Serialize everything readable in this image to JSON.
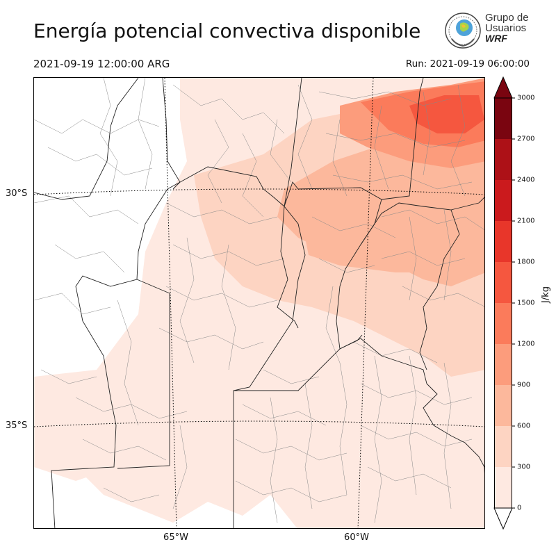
{
  "title": "Energía potencial convectiva disponible",
  "valid_time": "2021-09-19 12:00:00 ARG",
  "run_time": "Run: 2021-09-19 06:00:00",
  "logo": {
    "line1": "Grupo de",
    "line2": "Usuarios",
    "line3": "WRF"
  },
  "axes": {
    "lat_labels": [
      "30°S",
      "35°S"
    ],
    "lon_labels": [
      "65°W",
      "60°W"
    ]
  },
  "colorbar": {
    "unit": "J/kg",
    "ticks": [
      "0",
      "300",
      "600",
      "900",
      "1200",
      "1500",
      "1800",
      "2100",
      "2400",
      "2700",
      "3000"
    ],
    "colors": [
      "#fee9e1",
      "#fdd4c2",
      "#fcb89c",
      "#fc9c7c",
      "#fb7b5b",
      "#f5573f",
      "#e8362a",
      "#cb1a1d",
      "#ad1117",
      "#7a0510"
    ],
    "extend": "both"
  }
}
